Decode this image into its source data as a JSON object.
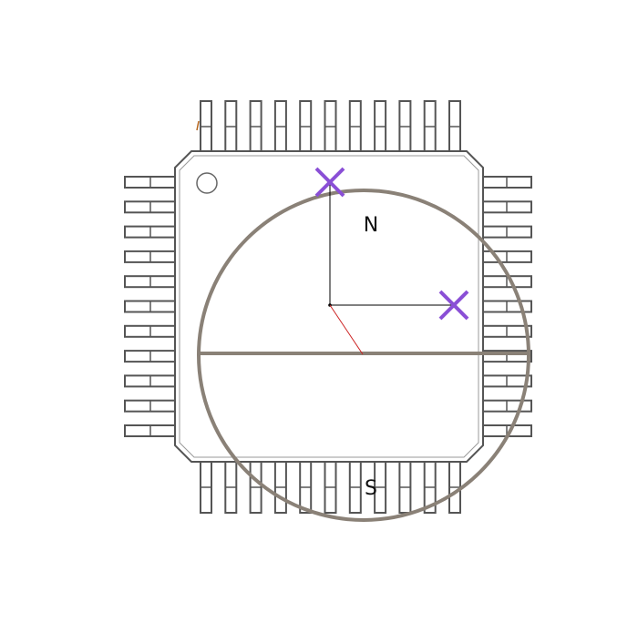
{
  "diagram": {
    "labels": {
      "north": "N",
      "south": "S"
    },
    "colors": {
      "body_outline": "#555555",
      "pin_outline": "#555555",
      "circle": "#8a8177",
      "markers": "#8a4fd6",
      "axes": "#000000",
      "radius_line": "#cc2222"
    },
    "package": {
      "pins_per_side": 11
    }
  }
}
